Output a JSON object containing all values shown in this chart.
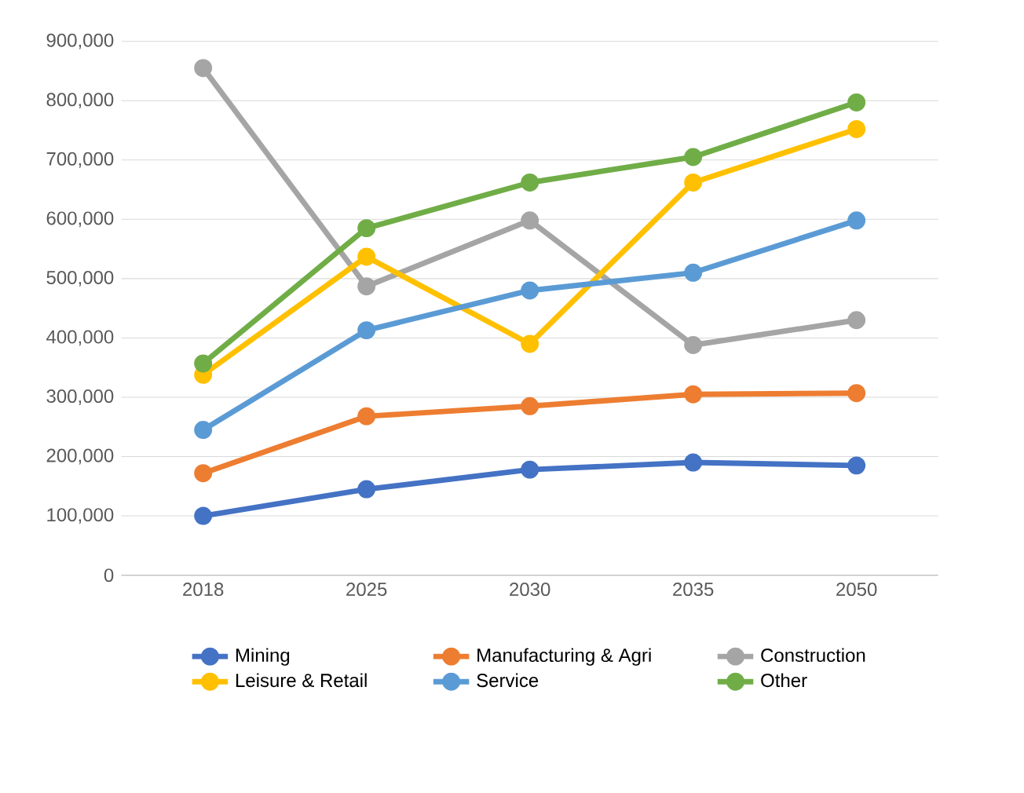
{
  "chart_data": {
    "type": "line",
    "categories": [
      "2018",
      "2025",
      "2030",
      "2035",
      "2050"
    ],
    "series": [
      {
        "name": "Mining",
        "color": "#4472c4",
        "values": [
          100000,
          145000,
          178000,
          190000,
          185000
        ]
      },
      {
        "name": "Manufacturing & Agri",
        "color": "#ed7d31",
        "values": [
          172000,
          268000,
          285000,
          305000,
          307000
        ]
      },
      {
        "name": "Construction",
        "color": "#a5a5a5",
        "values": [
          855000,
          487000,
          598000,
          388000,
          430000
        ]
      },
      {
        "name": "Leisure & Retail",
        "color": "#ffc000",
        "values": [
          338000,
          537000,
          390000,
          662000,
          752000
        ]
      },
      {
        "name": "Service",
        "color": "#5b9bd5",
        "values": [
          245000,
          413000,
          480000,
          510000,
          598000
        ]
      },
      {
        "name": "Other",
        "color": "#70ad47",
        "values": [
          357000,
          585000,
          662000,
          705000,
          797000
        ]
      }
    ],
    "ylim": [
      0,
      900000
    ],
    "yticks": [
      0,
      {
        "value": 100000,
        "label": "100,000"
      },
      {
        "value": 200000,
        "label": "200,000"
      },
      {
        "value": 300000,
        "label": "300,000"
      },
      {
        "value": 400000,
        "label": "400,000"
      },
      {
        "value": 500000,
        "label": "500,000"
      },
      {
        "value": 600000,
        "label": "600,000"
      },
      {
        "value": 700000,
        "label": "700,000"
      },
      {
        "value": 800000,
        "label": "800,000"
      },
      {
        "value": 900000,
        "label": "900,000"
      }
    ],
    "grid": "y",
    "legend": "bottom",
    "marker": "circle",
    "line_style": "solid"
  }
}
